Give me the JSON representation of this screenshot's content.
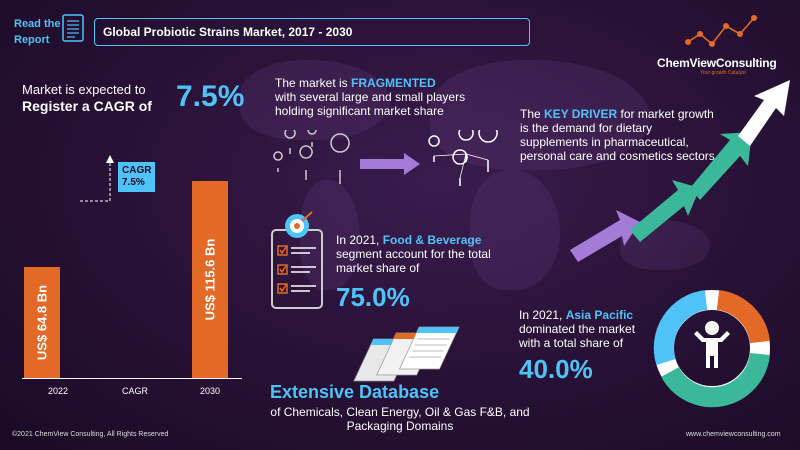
{
  "header": {
    "read_line1": "Read the",
    "read_line2": "Report",
    "title": "Global Probiotic Strains Market, 2017  - 2030"
  },
  "logo": {
    "name": "ChemViewConsulting",
    "tagline": "Your growth Catalyst"
  },
  "cagr_headline": {
    "line1": "Market is expected to",
    "line2": "Register a CAGR of",
    "value": "7.5%"
  },
  "chart_data": {
    "type": "bar",
    "categories": [
      "2022",
      "CAGR",
      "2030"
    ],
    "values": [
      64.8,
      null,
      115.6
    ],
    "bar_labels": [
      "US$ 64.8 Bn",
      "",
      "US$ 115.6 Bn"
    ],
    "cagr_label": "CAGR",
    "cagr_value": "7.5%",
    "ylim": [
      0,
      130
    ],
    "colors": {
      "bar": "#e36a26",
      "badge": "#4fc3f7"
    }
  },
  "fragmented": {
    "pre": "The market is ",
    "highlight": "FRAGMENTED",
    "post": "with several large and small players holding significant market share"
  },
  "food_beverage": {
    "pre": "In 2021, ",
    "highlight": "Food & Beverage",
    "post": " segment account for the total market share of",
    "value": "75.0%"
  },
  "database": {
    "title": "Extensive Database",
    "subtitle": "of Chemicals, Clean Energy, Oil & Gas F&B, and Packaging Domains"
  },
  "key_driver": {
    "pre": "The ",
    "highlight": "KEY DRIVER",
    "post": " for market growth is the demand for dietary supplements in pharmaceutical, personal care and cosmetics sectors"
  },
  "asia_pacific": {
    "pre": "In 2021, ",
    "highlight": "Asia Pacific",
    "post": " dominated the market with a total share of",
    "value": "40.0%",
    "share": 0.4
  },
  "footer": {
    "copyright": "©2021  ChemView  Consulting,  All Rights Reserved",
    "website": "www.chemviewconsulting.com"
  },
  "colors": {
    "accent": "#4fc3f7",
    "orange": "#e36a26",
    "green": "#3bb89a",
    "purple": "#a47bd6"
  }
}
